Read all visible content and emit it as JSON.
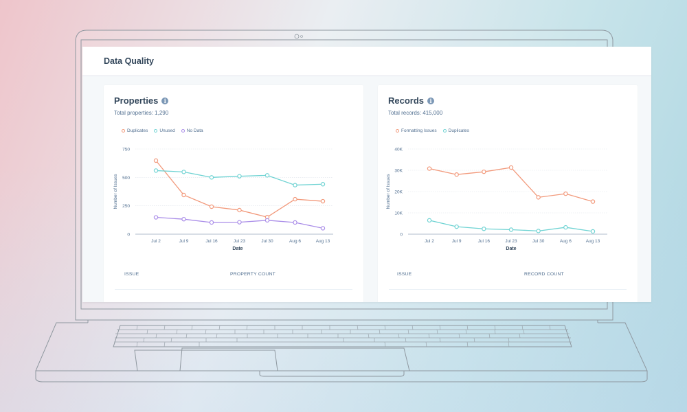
{
  "app": {
    "title": "Data Quality"
  },
  "properties_card": {
    "title": "Properties",
    "info_icon": "info-icon",
    "subtitle": "Total properties: 1,290",
    "legend": [
      {
        "label": "Duplicates",
        "color": "#f2997b"
      },
      {
        "label": "Unused",
        "color": "#6fd3d3"
      },
      {
        "label": "No Data",
        "color": "#a98ce8"
      }
    ],
    "table_headers": [
      "ISSUE",
      "PROPERTY COUNT"
    ]
  },
  "records_card": {
    "title": "Records",
    "info_icon": "info-icon",
    "subtitle": "Total records: 415,000",
    "legend": [
      {
        "label": "Formatting Issues",
        "color": "#f2997b"
      },
      {
        "label": "Duplicates",
        "color": "#6fd3d3"
      }
    ],
    "table_headers": [
      "ISSUE",
      "RECORD COUNT"
    ]
  },
  "chart_data": [
    {
      "type": "line",
      "title": "Properties",
      "xlabel": "Date",
      "ylabel": "Number of Issues",
      "x": [
        "Jul 2",
        "Jul 9",
        "Jul 16",
        "Jul 23",
        "Jul 30",
        "Aug 6",
        "Aug 13"
      ],
      "yticks": [
        "0",
        "250",
        "500",
        "750"
      ],
      "ylim": [
        0,
        750
      ],
      "grid": true,
      "legend_position": "top-left",
      "series": [
        {
          "name": "Duplicates",
          "color": "#f2997b",
          "values": [
            648,
            345,
            242,
            212,
            150,
            308,
            290
          ]
        },
        {
          "name": "Unused",
          "color": "#6fd3d3",
          "values": [
            560,
            548,
            500,
            510,
            518,
            432,
            440
          ]
        },
        {
          "name": "No Data",
          "color": "#a98ce8",
          "values": [
            148,
            132,
            103,
            105,
            122,
            103,
            52
          ]
        }
      ]
    },
    {
      "type": "line",
      "title": "Records",
      "xlabel": "Date",
      "ylabel": "Number of Issues",
      "x": [
        "Jul 2",
        "Jul 9",
        "Jul 16",
        "Jul 23",
        "Jul 30",
        "Aug 6",
        "Aug 13"
      ],
      "yticks": [
        "0",
        "10K",
        "20K",
        "30K",
        "40K"
      ],
      "ylim": [
        0,
        40000
      ],
      "grid": true,
      "legend_position": "top-left",
      "series": [
        {
          "name": "Formatting Issues",
          "color": "#f2997b",
          "values": [
            30800,
            28000,
            29300,
            31300,
            17300,
            19000,
            15300
          ]
        },
        {
          "name": "Duplicates",
          "color": "#6fd3d3",
          "values": [
            6500,
            3500,
            2500,
            2100,
            1500,
            3200,
            1300
          ]
        }
      ]
    }
  ]
}
